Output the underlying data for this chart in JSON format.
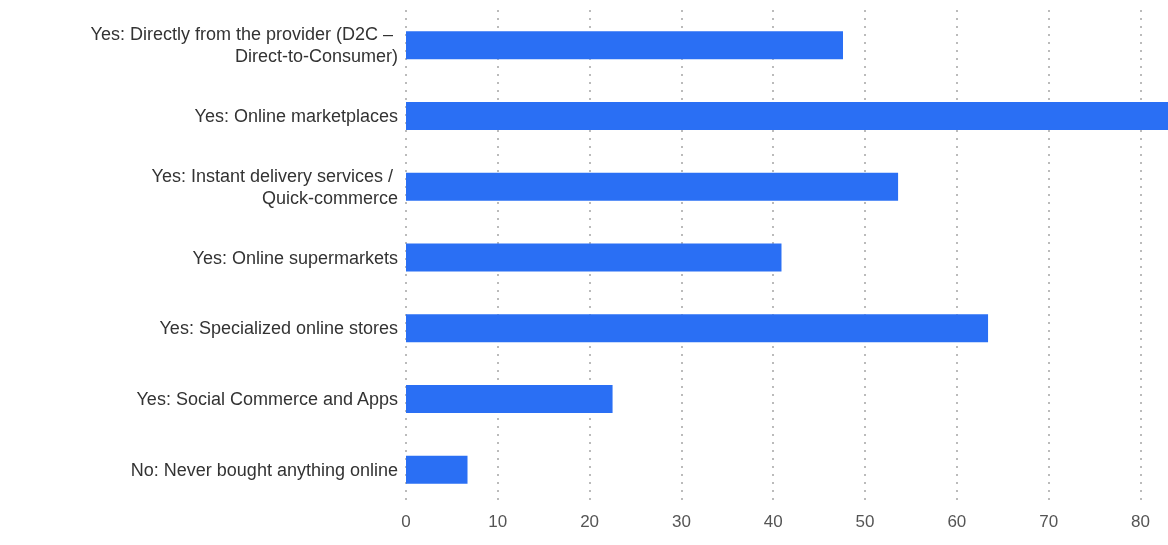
{
  "chart_data": {
    "type": "bar",
    "orientation": "horizontal",
    "categories": [
      "Yes: Directly from the provider (D2C – Direct-to-Consumer)",
      "Yes: Online marketplaces",
      "Yes: Instant delivery services / Quick-commerce",
      "Yes: Online supermarkets",
      "Yes: Specialized online stores",
      "Yes: Social Commerce and Apps",
      "No: Never bought anything online"
    ],
    "values": [
      47.6,
      83,
      53.6,
      40.9,
      63.4,
      22.5,
      6.7
    ],
    "color": "#2a6ff4",
    "xlim": [
      0,
      83
    ],
    "xticks": [
      0,
      10,
      20,
      30,
      40,
      50,
      60,
      70,
      80
    ],
    "grid": "x"
  }
}
